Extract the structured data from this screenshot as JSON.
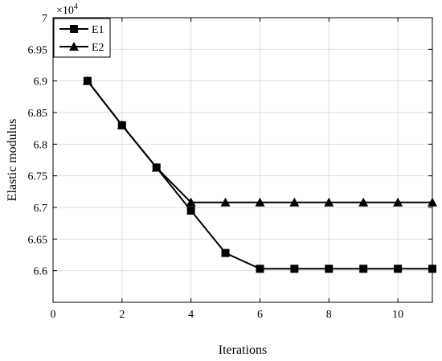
{
  "chart_data": {
    "type": "line",
    "xlabel": "Iterations",
    "ylabel": "Elastic modulus",
    "exponent_base": "×10",
    "exponent_power": "4",
    "xlim": [
      0,
      11
    ],
    "ylim": [
      6.55,
      7.0
    ],
    "x_ticks": [
      0,
      2,
      4,
      6,
      8,
      10
    ],
    "y_ticks": [
      6.6,
      6.65,
      6.7,
      6.75,
      6.8,
      6.85,
      6.9,
      6.95,
      7.0
    ],
    "x_tick_labels": [
      "0",
      "2",
      "4",
      "6",
      "8",
      "10"
    ],
    "y_tick_labels": [
      "6.6",
      "6.65",
      "6.7",
      "6.75",
      "6.8",
      "6.85",
      "6.9",
      "6.95",
      "7"
    ],
    "grid": true,
    "legend_position": "top-left",
    "x": [
      1,
      2,
      3,
      4,
      5,
      6,
      7,
      8,
      9,
      10,
      11
    ],
    "series": [
      {
        "name": "E1",
        "marker": "square",
        "color": "#000000",
        "values": [
          6.9,
          6.83,
          6.763,
          6.695,
          6.628,
          6.603,
          6.603,
          6.603,
          6.603,
          6.603,
          6.603
        ]
      },
      {
        "name": "E2",
        "marker": "triangle",
        "color": "#000000",
        "values": [
          6.9,
          6.83,
          6.763,
          6.708,
          6.708,
          6.708,
          6.708,
          6.708,
          6.708,
          6.708,
          6.708
        ]
      }
    ]
  }
}
